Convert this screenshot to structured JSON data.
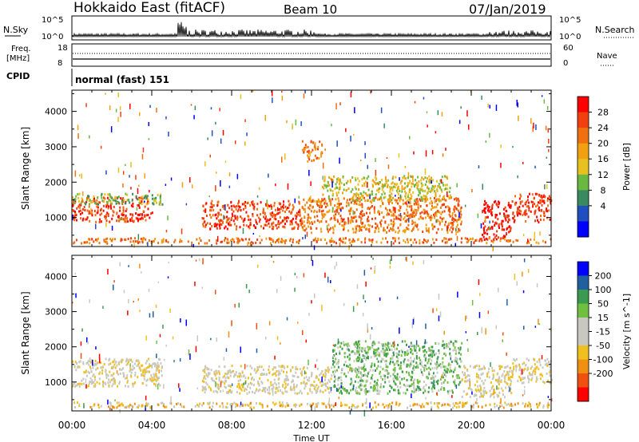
{
  "header": {
    "station": "Hokkaido East (fitACF)",
    "beam": "Beam 10",
    "date": "07/Jan/2019"
  },
  "strip_labels": {
    "nsky": "N.Sky",
    "nsky_ticks": [
      "10^5",
      "10^0"
    ],
    "nsearch": "N.Search",
    "freq": "Freq.",
    "freq_unit": "[MHz]",
    "freq_ticks": [
      "18",
      "8"
    ],
    "nave_ticks": [
      "60",
      "0"
    ],
    "nave": "Nave",
    "cpid": "CPID",
    "cpid_value": "normal (fast) 151"
  },
  "chart_data": [
    {
      "type": "heatmap",
      "name": "power-panel",
      "ylabel": "Slant Range [km]",
      "xlabel": "Time UT",
      "x_ticks": [
        "00:00",
        "04:00",
        "08:00",
        "12:00",
        "16:00",
        "20:00",
        "00:00"
      ],
      "x_range_hours": [
        0,
        24
      ],
      "y_ticks": [
        1000,
        2000,
        3000,
        4000
      ],
      "y_range": [
        180,
        4600
      ],
      "colorbar_label": "Power [dB]",
      "colorbar_ticks": [
        "28",
        "24",
        "20",
        "16",
        "12",
        "8",
        "4"
      ],
      "colorbar_colors": [
        "#0000ff",
        "#2050c0",
        "#3a8a60",
        "#6ab840",
        "#e8c020",
        "#f0a010",
        "#f07010",
        "#f04010",
        "#ff0000"
      ],
      "features": [
        {
          "t0": 0.0,
          "t1": 4.0,
          "r0": 900,
          "r1": 1600,
          "level": 7
        },
        {
          "t0": 0.0,
          "t1": 4.5,
          "r0": 1400,
          "r1": 1700,
          "level": 3
        },
        {
          "t0": 6.5,
          "t1": 11.5,
          "r0": 700,
          "r1": 1500,
          "level": 7
        },
        {
          "t0": 11.5,
          "t1": 19.5,
          "r0": 600,
          "r1": 1600,
          "level": 6
        },
        {
          "t0": 12.5,
          "t1": 19.0,
          "r0": 1500,
          "r1": 2200,
          "level": 4
        },
        {
          "t0": 20.5,
          "t1": 22.0,
          "r0": 400,
          "r1": 1500,
          "level": 8
        },
        {
          "t0": 22.0,
          "t1": 24.0,
          "r0": 900,
          "r1": 1700,
          "level": 7
        },
        {
          "t0": 11.5,
          "t1": 12.5,
          "r0": 2600,
          "r1": 3200,
          "level": 6
        },
        {
          "t0": 0.0,
          "t1": 24.0,
          "r0": 300,
          "r1": 450,
          "level": 6
        }
      ]
    },
    {
      "type": "heatmap",
      "name": "velocity-panel",
      "ylabel": "Slant Range [km]",
      "xlabel": "Time UT",
      "x_ticks": [
        "00:00",
        "04:00",
        "08:00",
        "12:00",
        "16:00",
        "20:00",
        "00:00"
      ],
      "x_range_hours": [
        0,
        24
      ],
      "y_ticks": [
        1000,
        2000,
        3000,
        4000
      ],
      "y_range": [
        180,
        4600
      ],
      "colorbar_label": "Velocity [m s^-1]",
      "colorbar_ticks": [
        "200",
        "100",
        "50",
        "15",
        "-15",
        "-50",
        "-100",
        "-200"
      ],
      "colorbar_colors": [
        "#ff0000",
        "#f05010",
        "#f09010",
        "#f0c020",
        "#c8c8c0",
        "#c8c8c0",
        "#70c040",
        "#3a9a50",
        "#2060a0",
        "#0000ff"
      ],
      "features": [
        {
          "t0": 0.0,
          "t1": 4.5,
          "r0": 900,
          "r1": 1700,
          "level": 4
        },
        {
          "t0": 6.5,
          "t1": 13.0,
          "r0": 700,
          "r1": 1500,
          "level": 4
        },
        {
          "t0": 13.0,
          "t1": 19.5,
          "r0": 700,
          "r1": 2200,
          "level": 6
        },
        {
          "t0": 19.5,
          "t1": 22.0,
          "r0": 600,
          "r1": 1500,
          "level": 4
        },
        {
          "t0": 22.0,
          "t1": 24.0,
          "r0": 1000,
          "r1": 1700,
          "level": 4
        },
        {
          "t0": 0.0,
          "t1": 24.0,
          "r0": 300,
          "r1": 450,
          "level": 3
        }
      ]
    }
  ]
}
